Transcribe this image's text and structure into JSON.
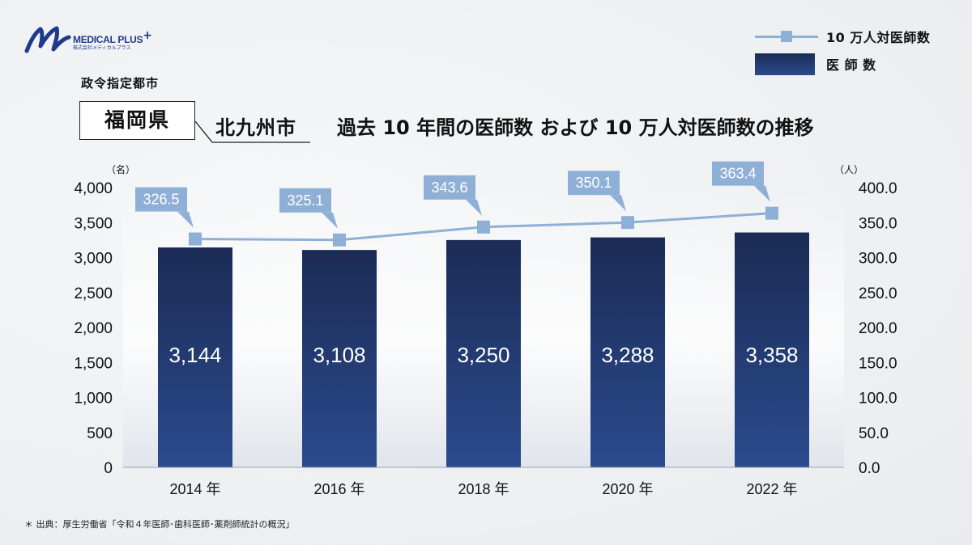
{
  "logo": {
    "name": "MEDICAL PLUS",
    "sub": "株式会社メディカルプラス",
    "plus": "+"
  },
  "legend": {
    "line_label": "10 万人対医師数",
    "bar_label": "医 師 数"
  },
  "header": {
    "designated_city": "政令指定都市",
    "prefecture": "福岡県",
    "city": "北九州市",
    "title": "過去 10 年間の医師数 および 10 万人対医師数の推移"
  },
  "source": "＊ 出典：厚生労働省「令和４年医師･歯科医師･薬剤師統計の概況」",
  "colors": {
    "bar_top": "#1b2b55",
    "bar_bottom": "#2b4b8d",
    "line": "#8fb0d6",
    "callout": "#8fb0d6"
  },
  "chart_data": {
    "type": "bar+line",
    "categories": [
      "2014 年",
      "2016 年",
      "2018 年",
      "2020 年",
      "2022 年"
    ],
    "series": [
      {
        "name": "医 師 数",
        "type": "bar",
        "axis": "left",
        "values": [
          3144,
          3108,
          3250,
          3288,
          3358
        ],
        "labels": [
          "3,144",
          "3,108",
          "3,250",
          "3,288",
          "3,358"
        ]
      },
      {
        "name": "10 万人対医師数",
        "type": "line",
        "axis": "right",
        "values": [
          326.5,
          325.1,
          343.6,
          350.1,
          363.4
        ],
        "labels": [
          "326.5",
          "325.1",
          "343.6",
          "350.1",
          "363.4"
        ]
      }
    ],
    "y_left": {
      "unit": "（名）",
      "ylim": [
        0,
        4000
      ],
      "ticks": [
        "0",
        "500",
        "1,000",
        "1,500",
        "2,000",
        "2,500",
        "3,000",
        "3,500",
        "4,000"
      ]
    },
    "y_right": {
      "unit": "（人）",
      "ylim": [
        0,
        400
      ],
      "ticks": [
        "0.0",
        "50.0",
        "100.0",
        "150.0",
        "200.0",
        "250.0",
        "300.0",
        "350.0",
        "400.0"
      ]
    },
    "grid": false,
    "legend_position": "top-right"
  }
}
